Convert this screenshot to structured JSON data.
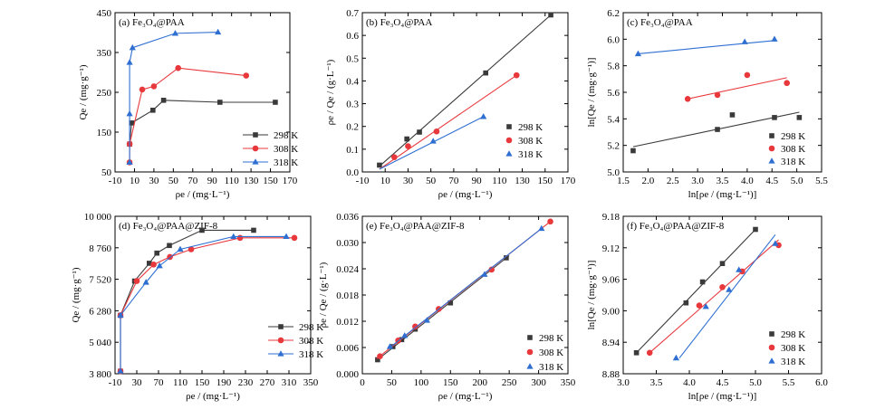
{
  "colors": {
    "s298": "#3a3a3a",
    "s308": "#e8383c",
    "s318": "#2f6fd2",
    "axis": "#000000"
  },
  "chart_data": [
    {
      "type": "line",
      "panel_label": "(a) Fe₃O₄@PAA",
      "xlabel": "ρe / (mg·L⁻¹)",
      "ylabel": "Qe / (mg·g⁻¹)",
      "xlim": [
        -10,
        170
      ],
      "ylim": [
        50,
        450
      ],
      "xticks": [
        -10,
        10,
        30,
        50,
        70,
        90,
        110,
        130,
        150,
        170
      ],
      "yticks": [
        50,
        150,
        250,
        350,
        450
      ],
      "legend_position": "bottom-right",
      "series": [
        {
          "name": "298 K",
          "marker": "square",
          "connect": "line",
          "x": [
            5,
            7,
            29,
            40,
            98,
            155
          ],
          "y": [
            120,
            173,
            205,
            230,
            225,
            225
          ]
        },
        {
          "name": "308 K",
          "marker": "circle",
          "connect": "line",
          "x": [
            5,
            5,
            18,
            30,
            55,
            125
          ],
          "y": [
            74,
            120,
            257,
            265,
            311,
            292
          ]
        },
        {
          "name": "318 K",
          "marker": "triangle",
          "connect": "line",
          "x": [
            5,
            5,
            5,
            8,
            52,
            96
          ],
          "y": [
            74,
            196,
            325,
            362,
            398,
            401
          ]
        }
      ]
    },
    {
      "type": "scatter",
      "panel_label": "(b) Fe₃O₄@PAA",
      "xlabel": "ρe / (mg·L⁻¹)",
      "ylabel": "ρe / Qe / (g·L⁻¹)",
      "xlim": [
        -10,
        170
      ],
      "ylim": [
        0,
        0.7
      ],
      "xticks": [
        -10,
        10,
        30,
        50,
        70,
        90,
        110,
        130,
        150,
        170
      ],
      "yticks": [
        0,
        0.1,
        0.2,
        0.3,
        0.4,
        0.5,
        0.6,
        0.7
      ],
      "legend_position": "right",
      "series": [
        {
          "name": "298 K",
          "marker": "square",
          "connect": "fit",
          "x": [
            5,
            29,
            40,
            98,
            155
          ],
          "y": [
            0.03,
            0.145,
            0.175,
            0.435,
            0.69
          ],
          "fit": [
            [
              5,
              0.025
            ],
            [
              155,
              0.69
            ]
          ]
        },
        {
          "name": "308 K",
          "marker": "circle",
          "connect": "fit",
          "x": [
            18,
            30,
            55,
            125
          ],
          "y": [
            0.065,
            0.113,
            0.178,
            0.425
          ],
          "fit": [
            [
              5,
              0.012
            ],
            [
              125,
              0.425
            ]
          ]
        },
        {
          "name": "318 K",
          "marker": "triangle",
          "connect": "fit",
          "x": [
            52,
            96
          ],
          "y": [
            0.135,
            0.243
          ],
          "fit": [
            [
              5,
              0.012
            ],
            [
              96,
              0.243
            ]
          ]
        }
      ]
    },
    {
      "type": "scatter",
      "panel_label": "(c) Fe₃O₄@PAA",
      "xlabel": "ln[ρe / (mg·L⁻¹)]",
      "ylabel": "ln[Qe / (mg·g⁻¹)]",
      "xlim": [
        1.5,
        5.5
      ],
      "ylim": [
        5.0,
        6.2
      ],
      "xticks": [
        1.5,
        2.0,
        2.5,
        3.0,
        3.5,
        4.0,
        4.5,
        5.0,
        5.5
      ],
      "yticks": [
        5.0,
        5.2,
        5.4,
        5.6,
        5.8,
        6.0,
        6.2
      ],
      "legend_position": "bottom-right",
      "series": [
        {
          "name": "298 K",
          "marker": "square",
          "connect": "fit",
          "x": [
            1.7,
            3.4,
            3.7,
            4.55,
            5.05
          ],
          "y": [
            5.16,
            5.32,
            5.43,
            5.41,
            5.41
          ],
          "fit": [
            [
              1.7,
              5.19
            ],
            [
              5.05,
              5.45
            ]
          ]
        },
        {
          "name": "308 K",
          "marker": "circle",
          "connect": "fit",
          "x": [
            2.8,
            3.4,
            4.0,
            4.8
          ],
          "y": [
            5.55,
            5.58,
            5.73,
            5.67
          ],
          "fit": [
            [
              2.8,
              5.55
            ],
            [
              4.8,
              5.71
            ]
          ]
        },
        {
          "name": "318 K",
          "marker": "triangle",
          "connect": "fit",
          "x": [
            1.8,
            3.95,
            4.55
          ],
          "y": [
            5.89,
            5.98,
            6.0
          ],
          "fit": [
            [
              1.8,
              5.89
            ],
            [
              4.55,
              5.99
            ]
          ]
        }
      ]
    },
    {
      "type": "line",
      "panel_label": "(d) Fe₃O₄@PAA@ZIF-8",
      "xlabel": "ρe / (mg·L⁻¹)",
      "ylabel": "Qe / (mg·g⁻¹)",
      "xlim": [
        -10,
        350
      ],
      "ylim": [
        3800,
        10000
      ],
      "xticks": [
        -10,
        30,
        70,
        110,
        150,
        190,
        230,
        270,
        310,
        350
      ],
      "yticks": [
        3800,
        5040,
        6280,
        7520,
        8760,
        10000
      ],
      "ytick_labels": [
        "3 800",
        "5 040",
        "6 280",
        "7 520",
        "8 760",
        "10 000"
      ],
      "legend_position": "bottom-right",
      "series": [
        {
          "name": "298 K",
          "marker": "square",
          "connect": "line",
          "x": [
            0,
            0,
            26,
            53,
            67,
            90,
            150,
            245
          ],
          "y": [
            3900,
            6100,
            7450,
            8150,
            8550,
            8850,
            9450,
            9450
          ]
        },
        {
          "name": "308 K",
          "marker": "circle",
          "connect": "line",
          "x": [
            0,
            0,
            30,
            61,
            91,
            130,
            220,
            320
          ],
          "y": [
            3900,
            6100,
            7450,
            8100,
            8400,
            8700,
            9150,
            9150
          ]
        },
        {
          "name": "318 K",
          "marker": "triangle",
          "connect": "line",
          "x": [
            0,
            0,
            47,
            72,
            110,
            208,
            305
          ],
          "y": [
            3900,
            6100,
            7400,
            8050,
            8700,
            9200,
            9200
          ]
        }
      ]
    },
    {
      "type": "scatter",
      "panel_label": "(e) Fe₃O₄@PAA@ZIF-8",
      "xlabel": "ρe / (mg·L⁻¹)",
      "ylabel": "ρe / Qe / (g·L⁻¹)",
      "xlim": [
        0,
        350
      ],
      "ylim": [
        0,
        0.036
      ],
      "xticks": [
        0,
        50,
        100,
        150,
        200,
        250,
        300,
        350
      ],
      "yticks": [
        0,
        0.006,
        0.012,
        0.018,
        0.024,
        0.03,
        0.036
      ],
      "ytick_labels": [
        "0.000",
        "0.006",
        "0.012",
        "0.018",
        "0.024",
        "0.030",
        "0.036"
      ],
      "legend_position": "bottom-right",
      "series": [
        {
          "name": "298 K",
          "marker": "square",
          "connect": "fit",
          "x": [
            26,
            52,
            67,
            90,
            150,
            245
          ],
          "y": [
            0.0032,
            0.0062,
            0.0078,
            0.0102,
            0.0162,
            0.0265
          ],
          "fit": [
            [
              24,
              0.003
            ],
            [
              250,
              0.027
            ]
          ]
        },
        {
          "name": "308 K",
          "marker": "circle",
          "connect": "fit",
          "x": [
            30,
            61,
            90,
            130,
            220,
            320
          ],
          "y": [
            0.004,
            0.0076,
            0.0108,
            0.0148,
            0.0238,
            0.0348
          ],
          "fit": [
            [
              24,
              0.0034
            ],
            [
              320,
              0.0348
            ]
          ]
        },
        {
          "name": "318 K",
          "marker": "triangle",
          "connect": "fit",
          "x": [
            47,
            72,
            110,
            208,
            305
          ],
          "y": [
            0.0062,
            0.0087,
            0.0122,
            0.0227,
            0.0332
          ],
          "fit": [
            [
              45,
              0.0058
            ],
            [
              305,
              0.0332
            ]
          ]
        }
      ]
    },
    {
      "type": "scatter",
      "panel_label": "(f) Fe₃O₄@PAA@ZIF-8",
      "xlabel": "ln[ρe / (mg·L⁻¹)]",
      "ylabel": "ln[Qe / (mg·g⁻¹)]",
      "xlim": [
        3.0,
        6.0
      ],
      "ylim": [
        8.88,
        9.18
      ],
      "xticks": [
        3.0,
        3.5,
        4.0,
        4.5,
        5.0,
        5.5,
        6.0
      ],
      "yticks": [
        8.88,
        8.94,
        9.0,
        9.06,
        9.12,
        9.18
      ],
      "legend_position": "bottom-right",
      "series": [
        {
          "name": "298 K",
          "marker": "square",
          "connect": "fit",
          "x": [
            3.2,
            3.95,
            4.2,
            4.5,
            5.0
          ],
          "y": [
            8.92,
            9.015,
            9.055,
            9.09,
            9.155
          ],
          "fit": [
            [
              3.2,
              8.92
            ],
            [
              5.0,
              9.155
            ]
          ]
        },
        {
          "name": "308 K",
          "marker": "circle",
          "connect": "fit",
          "x": [
            3.4,
            4.15,
            4.5,
            4.8,
            5.35
          ],
          "y": [
            8.92,
            9.01,
            9.045,
            9.075,
            9.125
          ],
          "fit": [
            [
              3.4,
              8.92
            ],
            [
              5.35,
              9.135
            ]
          ]
        },
        {
          "name": "318 K",
          "marker": "triangle",
          "connect": "fit",
          "x": [
            3.8,
            4.25,
            4.6,
            4.75,
            5.3
          ],
          "y": [
            8.91,
            9.008,
            9.04,
            9.078,
            9.128
          ],
          "fit": [
            [
              3.85,
              8.91
            ],
            [
              5.3,
              9.145
            ]
          ]
        }
      ]
    }
  ]
}
